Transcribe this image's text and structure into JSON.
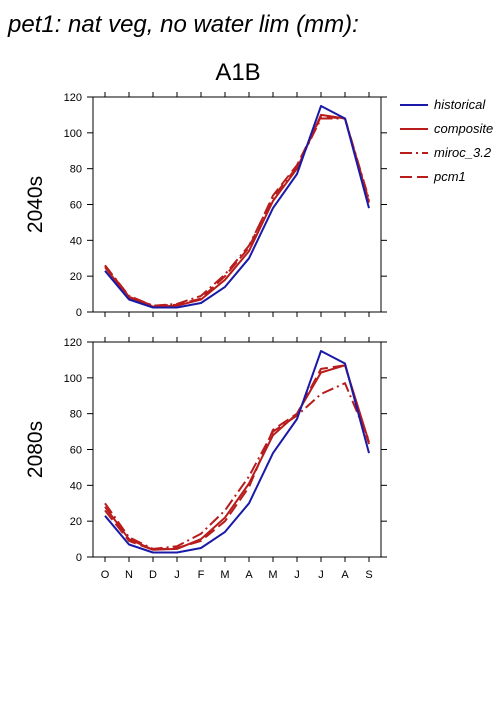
{
  "figure": {
    "title": "pet1: nat veg, no water lim (mm):",
    "scenario": "A1B"
  },
  "colors": {
    "historical": "#1a1aa8",
    "models": "#b81c1c",
    "axis": "#000000"
  },
  "legend": {
    "placement": "right of top panel",
    "entries": [
      {
        "label": "historical",
        "color": "#1a1aa8",
        "dash": "solid"
      },
      {
        "label": "composite",
        "color": "#b81c1c",
        "dash": "solid"
      },
      {
        "label": "miroc_3.2",
        "color": "#b81c1c",
        "dash": "dashdot"
      },
      {
        "label": "pcm1",
        "color": "#b81c1c",
        "dash": "dashed"
      }
    ]
  },
  "chart_data": [
    {
      "type": "line",
      "panel_label": "2040s",
      "categories": [
        "O",
        "N",
        "D",
        "J",
        "F",
        "M",
        "A",
        "M",
        "J",
        "J",
        "A",
        "S"
      ],
      "ylim": [
        0,
        120
      ],
      "yticks": [
        0,
        20,
        40,
        60,
        80,
        100,
        120
      ],
      "xtick_labels_shown": false,
      "grid": false,
      "series": [
        {
          "name": "historical",
          "values": [
            23,
            7,
            2.5,
            2.5,
            5,
            14,
            30,
            58,
            77,
            115,
            108,
            58
          ]
        },
        {
          "name": "composite",
          "values": [
            25,
            8,
            3,
            3.5,
            7,
            18,
            34,
            62,
            80,
            110,
            108,
            61
          ]
        },
        {
          "name": "miroc_3.2",
          "values": [
            26,
            9,
            3.5,
            4.5,
            9,
            21,
            37,
            64,
            81,
            108,
            108,
            63
          ]
        },
        {
          "name": "pcm1",
          "values": [
            26,
            8.5,
            3.5,
            4,
            7.5,
            20,
            36,
            65,
            82,
            109,
            108,
            62
          ]
        }
      ]
    },
    {
      "type": "line",
      "panel_label": "2080s",
      "categories": [
        "O",
        "N",
        "D",
        "J",
        "F",
        "M",
        "A",
        "M",
        "J",
        "J",
        "A",
        "S"
      ],
      "ylim": [
        0,
        120
      ],
      "yticks": [
        0,
        20,
        40,
        60,
        80,
        100,
        120
      ],
      "xtick_labels_shown": true,
      "grid": false,
      "series": [
        {
          "name": "historical",
          "values": [
            23,
            7,
            2.5,
            2.5,
            5,
            14,
            30,
            58,
            77,
            115,
            108,
            58
          ]
        },
        {
          "name": "composite",
          "values": [
            28,
            10,
            4,
            4.5,
            10,
            22,
            41,
            68,
            80,
            103,
            107,
            64
          ]
        },
        {
          "name": "miroc_3.2",
          "values": [
            30,
            11,
            4.5,
            6,
            13,
            26,
            45,
            70,
            79,
            91,
            97,
            65
          ]
        },
        {
          "name": "pcm1",
          "values": [
            26,
            9,
            4,
            5,
            9,
            20,
            39,
            71,
            80,
            105,
            107,
            63
          ]
        }
      ]
    }
  ]
}
